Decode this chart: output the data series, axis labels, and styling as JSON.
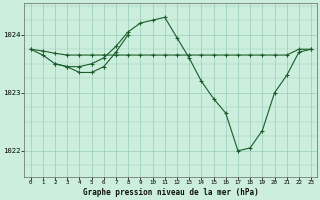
{
  "title": "Graphe pression niveau de la mer (hPa)",
  "background_color": "#cceedd",
  "grid_color": "#99ccbb",
  "line_color": "#1a5c2a",
  "xlim": [
    -0.5,
    23.5
  ],
  "ylim": [
    1021.55,
    1024.55
  ],
  "yticks": [
    1022,
    1023,
    1024
  ],
  "xtick_labels": [
    "0",
    "1",
    "2",
    "3",
    "4",
    "5",
    "6",
    "7",
    "8",
    "9",
    "10",
    "11",
    "12",
    "13",
    "14",
    "15",
    "16",
    "17",
    "18",
    "19",
    "20",
    "21",
    "22",
    "23"
  ],
  "series": [
    {
      "x": [
        0,
        1,
        2,
        3,
        4,
        5,
        6,
        7,
        8,
        9,
        10,
        11,
        12,
        13,
        14,
        15,
        16,
        17,
        18,
        19,
        20,
        21,
        22,
        23
      ],
      "y": [
        1023.75,
        1023.72,
        1023.68,
        1023.65,
        1023.65,
        1023.65,
        1023.65,
        1023.65,
        1023.65,
        1023.65,
        1023.65,
        1023.65,
        1023.65,
        1023.65,
        1023.65,
        1023.65,
        1023.65,
        1023.65,
        1023.65,
        1023.65,
        1023.65,
        1023.65,
        1023.75,
        1023.75
      ]
    },
    {
      "x": [
        0,
        1,
        2,
        3,
        4,
        5,
        6,
        7,
        8,
        9,
        10,
        11,
        12,
        13,
        14,
        15,
        16,
        17,
        18,
        19,
        20,
        21,
        22,
        23
      ],
      "y": [
        1023.75,
        1023.65,
        1023.5,
        1023.45,
        1023.45,
        1023.5,
        1023.6,
        1023.8,
        1024.05,
        1024.2,
        1024.25,
        1024.3,
        1023.95,
        1023.6,
        1023.2,
        1022.9,
        1022.65,
        1022.0,
        1022.05,
        1022.35,
        1023.0,
        1023.3,
        1023.7,
        1023.75
      ]
    },
    {
      "x": [
        2,
        3,
        4,
        5,
        6,
        7,
        8
      ],
      "y": [
        1023.5,
        1023.45,
        1023.35,
        1023.35,
        1023.45,
        1023.7,
        1024.0
      ]
    }
  ]
}
